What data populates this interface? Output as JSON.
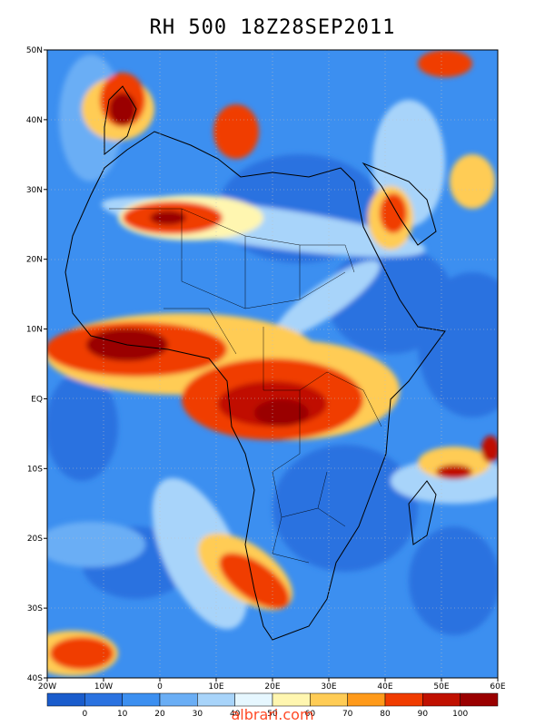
{
  "title": "RH 500 18Z28SEP2011",
  "lat_labels": [
    "50N",
    "40N",
    "30N",
    "20N",
    "10N",
    "EQ",
    "10S",
    "20S",
    "30S",
    "40S"
  ],
  "lon_labels": [
    "20W",
    "10W",
    "0",
    "10E",
    "20E",
    "30E",
    "40E",
    "50E",
    "60E"
  ],
  "legend": {
    "colors": [
      "#1a5ccc",
      "#2a72e0",
      "#3c8ff0",
      "#6aaef5",
      "#a8d4fa",
      "#e6f7ff",
      "#fff6b0",
      "#ffcc55",
      "#ff9a1a",
      "#f03c00",
      "#c01000",
      "#9a0000"
    ],
    "labels": [
      "0",
      "10",
      "20",
      "30",
      "40",
      "50",
      "60",
      "70",
      "80",
      "90",
      "100"
    ]
  },
  "watermark": "albrari.com"
}
